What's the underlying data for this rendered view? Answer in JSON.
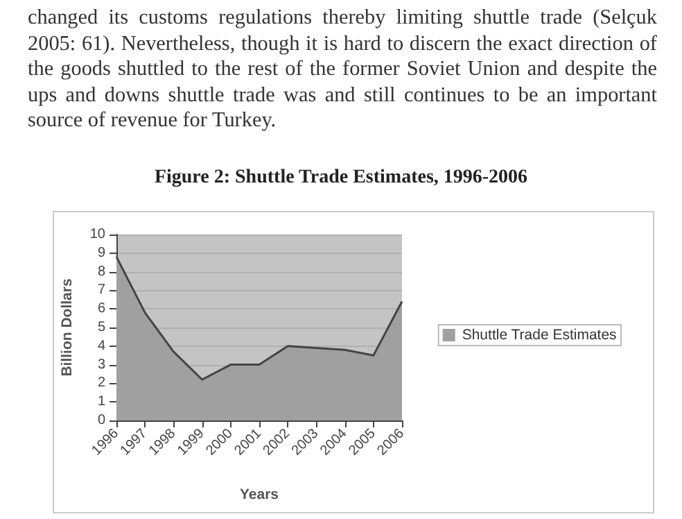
{
  "chart_data": {
    "type": "area",
    "title": "Figure 2: Shuttle Trade Estimates, 1996-2006",
    "annotations": [
      "changed its customs regulations thereby limiting shuttle trade (Selçuk 2005: 61). Nevertheless, though it is hard to discern the exact direction of the goods shuttled to the rest of the former Soviet Union and despite the ups and downs shuttle trade was and still continues to be an important source of revenue for Turkey."
    ],
    "xlabel": "Years",
    "ylabel": "Billion Dollars",
    "categories": [
      "1996",
      "1997",
      "1998",
      "1999",
      "2000",
      "2001",
      "2002",
      "2003",
      "2004",
      "2005",
      "2006"
    ],
    "series": [
      {
        "name": "Shuttle Trade Estimates",
        "color": "#a0a0a0",
        "values": [
          8.8,
          5.8,
          3.7,
          2.2,
          3.0,
          3.0,
          4.0,
          3.9,
          3.8,
          3.5,
          6.4
        ]
      }
    ],
    "ylim": [
      0,
      10
    ],
    "yticks": [
      0,
      1,
      2,
      3,
      4,
      5,
      6,
      7,
      8,
      9,
      10
    ],
    "grid": "y",
    "legend": "right"
  }
}
